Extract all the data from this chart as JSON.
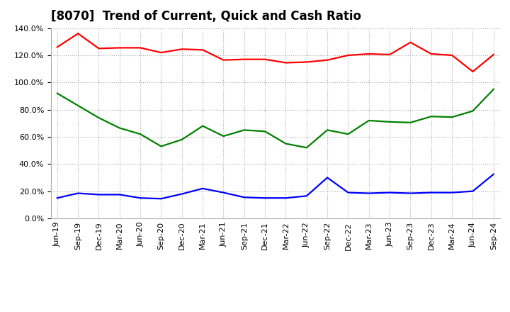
{
  "title": "[8070]  Trend of Current, Quick and Cash Ratio",
  "labels": [
    "Jun-19",
    "Sep-19",
    "Dec-19",
    "Mar-20",
    "Jun-20",
    "Sep-20",
    "Dec-20",
    "Mar-21",
    "Jun-21",
    "Sep-21",
    "Dec-21",
    "Mar-22",
    "Jun-22",
    "Sep-22",
    "Dec-22",
    "Mar-23",
    "Jun-23",
    "Sep-23",
    "Dec-23",
    "Mar-24",
    "Jun-24",
    "Sep-24"
  ],
  "current_ratio": [
    126.0,
    136.0,
    125.0,
    125.5,
    125.5,
    122.0,
    124.5,
    124.0,
    116.5,
    117.0,
    117.0,
    114.5,
    115.0,
    116.5,
    120.0,
    121.0,
    120.5,
    129.5,
    121.0,
    120.0,
    108.0,
    120.5
  ],
  "quick_ratio": [
    92.0,
    83.0,
    74.0,
    66.5,
    62.0,
    53.0,
    58.0,
    68.0,
    60.5,
    65.0,
    64.0,
    55.0,
    52.0,
    65.0,
    62.0,
    72.0,
    71.0,
    70.5,
    75.0,
    74.5,
    79.0,
    95.0
  ],
  "cash_ratio": [
    15.0,
    18.5,
    17.5,
    17.5,
    15.0,
    14.5,
    18.0,
    22.0,
    19.0,
    15.5,
    15.0,
    15.0,
    16.5,
    30.0,
    19.0,
    18.5,
    19.0,
    18.5,
    19.0,
    19.0,
    20.0,
    32.5
  ],
  "current_color": "#FF0000",
  "quick_color": "#008000",
  "cash_color": "#0000FF",
  "ylim": [
    0,
    140
  ],
  "yticks": [
    0,
    20,
    40,
    60,
    80,
    100,
    120,
    140
  ],
  "background_color": "#FFFFFF",
  "plot_bg_color": "#FFFFFF",
  "grid_color": "#AAAAAA",
  "title_fontsize": 12,
  "legend_fontsize": 9.5,
  "tick_fontsize": 8,
  "line_width": 1.6
}
